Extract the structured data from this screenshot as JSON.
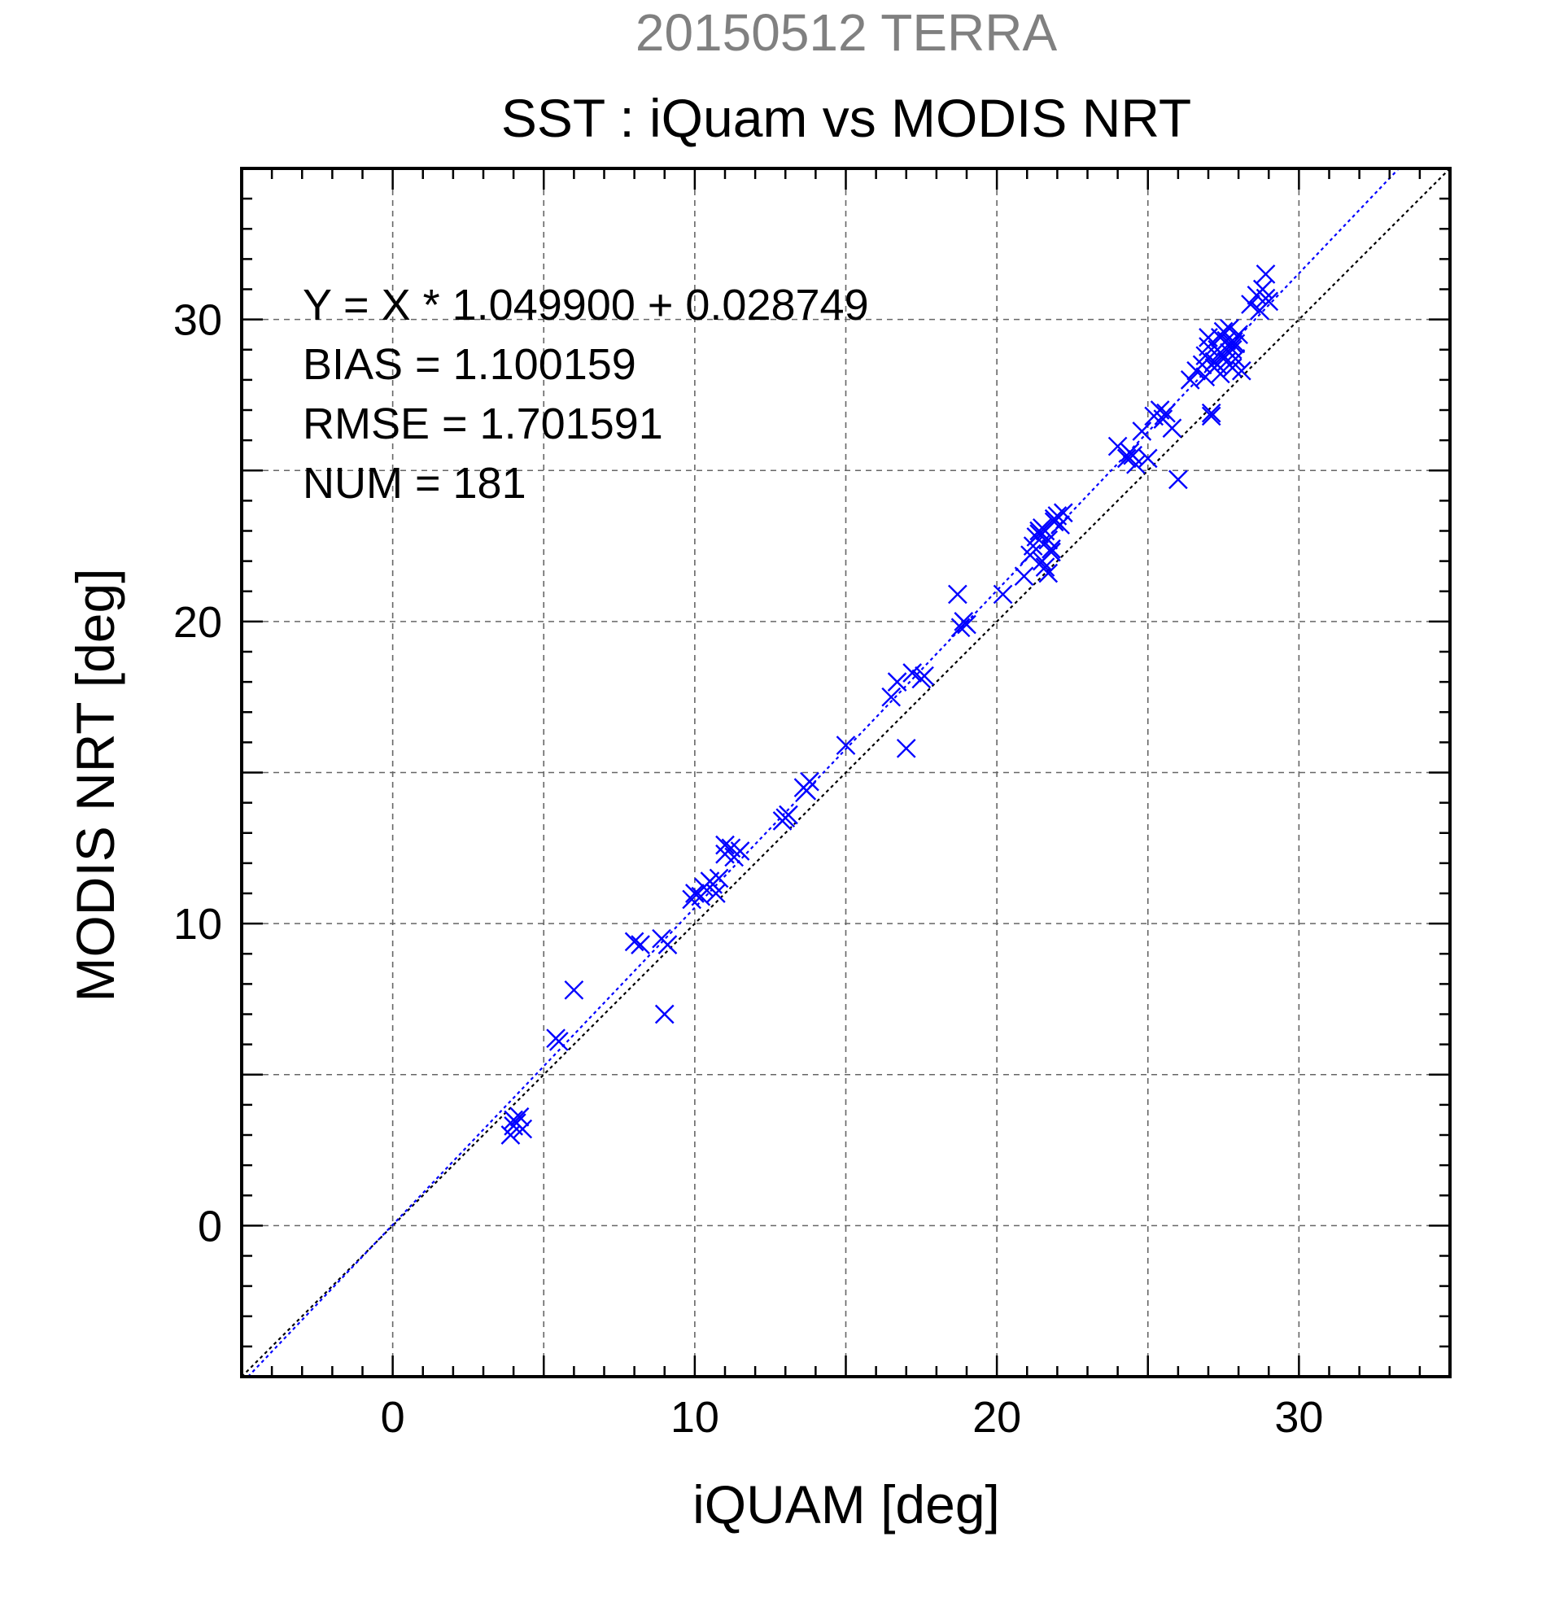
{
  "chart_data": {
    "type": "scatter",
    "title": "20150512 TERRA",
    "subtitle": "SST : iQuam vs MODIS NRT",
    "xlabel": "iQUAM [deg]",
    "ylabel": "MODIS NRT [deg]",
    "xlim": [
      -5,
      35
    ],
    "ylim": [
      -5,
      35
    ],
    "xticks": [
      0,
      10,
      20,
      30
    ],
    "yticks": [
      0,
      10,
      20,
      30
    ],
    "minor_step": 1,
    "grid_step": 5,
    "grid": true,
    "annotations": [
      "Y = X * 1.049900 + 0.028749",
      "BIAS = 1.100159",
      "RMSE = 1.701591",
      "NUM = 181"
    ],
    "fit": {
      "slope": 1.0499,
      "intercept": 0.028749,
      "color": "#0000ff",
      "style": "dotted"
    },
    "reference_line": {
      "slope": 1,
      "intercept": 0,
      "color": "#000000",
      "style": "dotted"
    },
    "colors": {
      "title": "#808080",
      "points": "#0000ff",
      "text": "#000000"
    },
    "series": [
      {
        "marker": "x",
        "x": [
          4.0,
          4.0,
          4.2,
          4.1,
          3.9,
          4.3,
          5.4,
          5.5,
          6.0,
          8.0,
          8.2,
          8.9,
          9.0,
          9.1,
          9.9,
          10.0,
          10.2,
          10.3,
          10.5,
          10.6,
          10.7,
          10.8,
          11.0,
          11.2,
          11.3,
          11.5,
          11.0,
          12.9,
          13.1,
          13.0,
          13.6,
          13.8,
          13.7,
          15.0,
          16.5,
          16.7,
          17.0,
          17.2,
          17.5,
          17.6,
          18.7,
          18.8,
          18.9,
          19.0,
          20.2,
          20.9,
          21.1,
          21.2,
          21.3,
          21.4,
          21.5,
          21.6,
          21.7,
          21.8,
          21.9,
          22.0,
          22.2,
          21.5,
          21.7,
          21.6,
          21.8,
          21.4,
          21.9,
          22.1,
          24.0,
          24.3,
          24.4,
          24.6,
          24.5,
          24.8,
          25.0,
          25.2,
          25.4,
          25.5,
          25.6,
          25.8,
          26.0,
          26.4,
          26.6,
          26.8,
          26.9,
          27.0,
          27.1,
          27.2,
          27.3,
          27.4,
          27.5,
          27.6,
          27.7,
          27.8,
          27.9,
          28.0,
          27.2,
          27.4,
          27.6,
          27.8,
          27.0,
          26.9,
          27.3,
          27.5,
          27.7,
          27.9,
          28.1,
          27.1,
          27.4,
          27.8,
          28.4,
          28.6,
          28.8,
          28.9,
          28.7,
          29.0,
          28.9
        ],
        "y": [
          3.5,
          3.3,
          3.6,
          3.4,
          3.0,
          3.2,
          6.2,
          6.1,
          7.8,
          9.4,
          9.3,
          9.5,
          7.0,
          9.3,
          10.8,
          11.0,
          10.9,
          11.2,
          11.4,
          11.3,
          11.0,
          11.5,
          12.3,
          12.5,
          12.2,
          12.4,
          12.6,
          13.4,
          13.6,
          13.5,
          14.5,
          14.7,
          14.4,
          15.9,
          17.5,
          18.0,
          15.8,
          18.3,
          18.1,
          18.2,
          20.9,
          19.8,
          20.0,
          19.9,
          20.9,
          21.5,
          22.2,
          22.5,
          22.8,
          23.0,
          22.0,
          21.8,
          21.6,
          22.4,
          23.3,
          23.5,
          23.6,
          23.1,
          22.7,
          23.0,
          22.3,
          22.9,
          23.4,
          23.2,
          25.8,
          25.4,
          25.6,
          25.2,
          25.5,
          26.3,
          25.4,
          26.8,
          27.0,
          26.7,
          26.9,
          26.4,
          24.7,
          28.0,
          28.3,
          28.5,
          28.8,
          29.1,
          26.9,
          28.6,
          29.0,
          29.4,
          29.6,
          29.3,
          28.9,
          29.2,
          28.7,
          29.5,
          28.4,
          28.2,
          28.6,
          29.0,
          29.4,
          28.1,
          28.5,
          28.8,
          29.7,
          29.2,
          28.3,
          26.8,
          28.9,
          28.4,
          30.5,
          30.8,
          31.0,
          31.5,
          30.3,
          30.6,
          30.7
        ]
      }
    ]
  }
}
